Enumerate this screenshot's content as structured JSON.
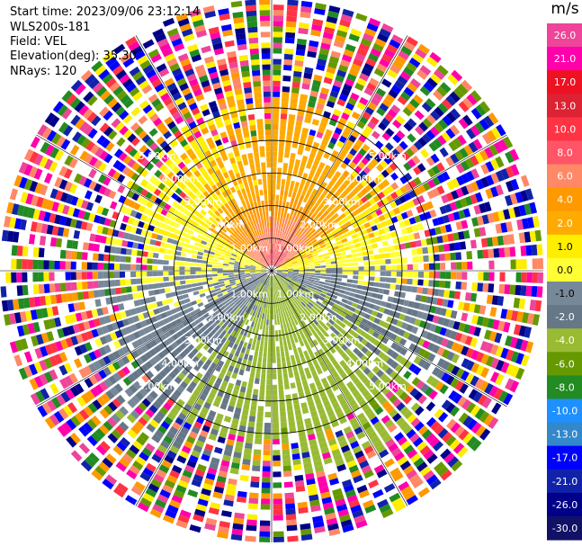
{
  "header": {
    "start_time": "Start time: 2023/09/06 23:12:14",
    "instrument": "WLS200s-181",
    "field": "Field: VEL",
    "elevation": "Elevation(deg): 35.30",
    "nrays": "NRays: 120"
  },
  "colorbar": {
    "unit": "m/s",
    "labels": [
      "26.0",
      "21.0",
      "17.0",
      "13.0",
      "10.0",
      "8.0",
      "6.0",
      "4.0",
      "2.0",
      "1.0",
      "0.0",
      "-1.0",
      "-2.0",
      "-4.0",
      "-6.0",
      "-8.0",
      "-10.0",
      "-13.0",
      "-17.0",
      "-21.0",
      "-26.0",
      "-30.0"
    ],
    "colors": [
      "#ee4499",
      "#ff00aa",
      "#ee1122",
      "#dd2233",
      "#ff3344",
      "#ff5566",
      "#ff8866",
      "#ff9900",
      "#ffaa00",
      "#ffee00",
      "#ffff33",
      "#778899",
      "#667788",
      "#99bb33",
      "#669900",
      "#228B22",
      "#1e90ff",
      "#3388cc",
      "#0000ff",
      "#1122aa",
      "#000088",
      "#111166"
    ]
  },
  "chart_data": {
    "type": "ppi",
    "title": "Field: VEL",
    "range_unit": "km",
    "rings_km": [
      1.0,
      2.0,
      3.0,
      4.0,
      5.0
    ],
    "ring_labels": [
      "1.00km",
      "2.00km",
      "3.00km",
      "4.00km",
      "5.00km"
    ],
    "max_range_km": 5.0,
    "n_rays": 120,
    "spoke_angles_deg": [
      0,
      30,
      60,
      90,
      120,
      150,
      180,
      210,
      240,
      270,
      300,
      330
    ],
    "color_levels": [
      -30,
      -26,
      -21,
      -17,
      -13,
      -10,
      -8,
      -6,
      -4,
      -2,
      -1,
      0,
      1,
      2,
      4,
      6,
      8,
      10,
      13,
      17,
      21,
      26
    ],
    "sector_patterns": [
      {
        "sector": "north",
        "near_km": 0.8,
        "velocity": 2.0,
        "inner_velocity": 8.0
      },
      {
        "sector": "east-west",
        "velocity": 0.0
      },
      {
        "sector": "south",
        "velocity": -4.0
      }
    ]
  }
}
